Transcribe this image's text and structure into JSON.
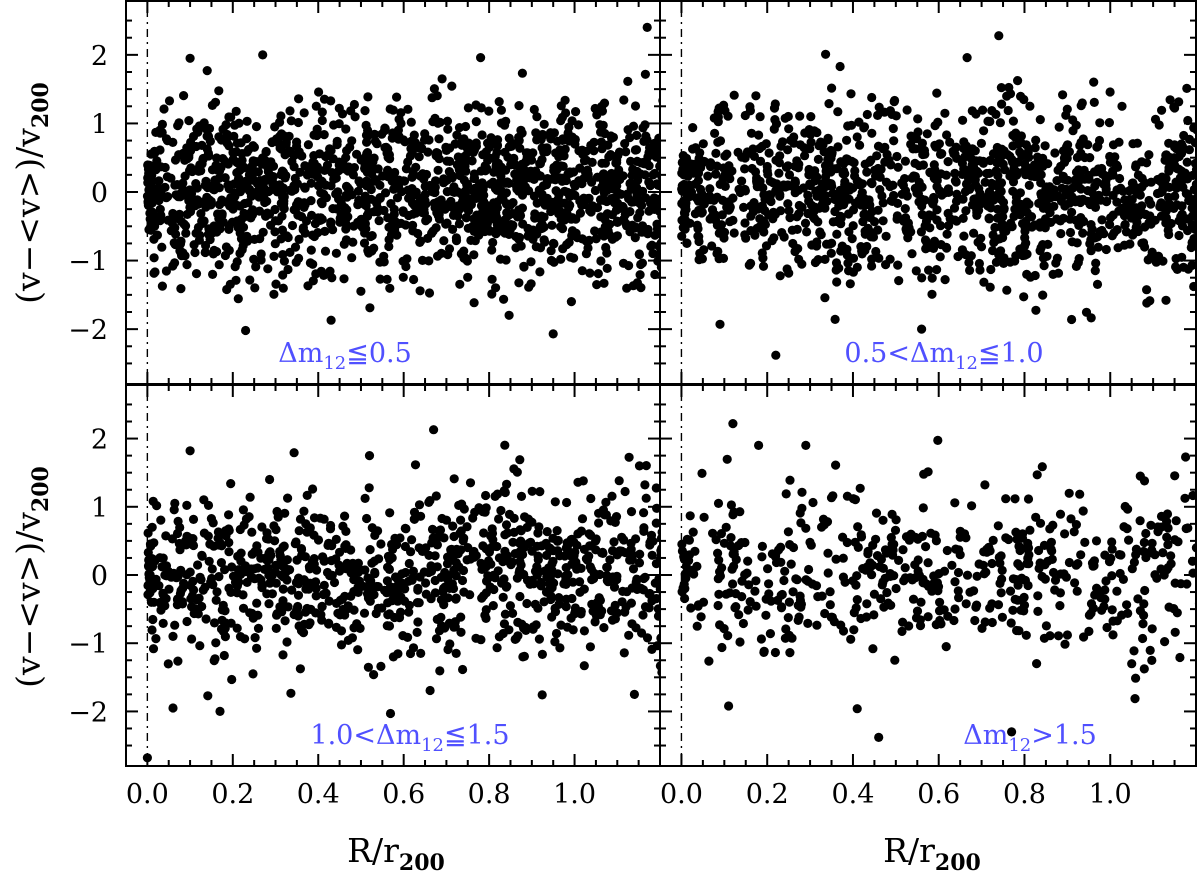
{
  "chart_data": [
    {
      "type": "scatter",
      "panel_label": {
        "pre": "Δm",
        "sub": "12",
        "post": "≦0.5"
      },
      "xlim": [
        -0.05,
        1.2
      ],
      "ylim": [
        -2.8,
        2.8
      ],
      "xticks": [
        "0.0",
        "0.2",
        "0.4",
        "0.6",
        "0.8",
        "1.0"
      ],
      "xtick_values": [
        0,
        0.2,
        0.4,
        0.6,
        0.8,
        1.0
      ],
      "yticks": [
        "−2",
        "−1",
        "0",
        "1",
        "2"
      ],
      "ytick_values": [
        -2,
        -1,
        0,
        1,
        2
      ],
      "reference_line_x": 0,
      "sample": {
        "n": 1600,
        "sigma": 0.62,
        "inner_spread": 0.3
      },
      "highlights": [
        [
          1.17,
          2.4
        ],
        [
          0.1,
          1.95
        ],
        [
          0.27,
          2.0
        ],
        [
          0.78,
          1.96
        ],
        [
          0.69,
          1.65
        ],
        [
          0.23,
          -2.02
        ],
        [
          0.95,
          -2.07
        ],
        [
          0.14,
          1.77
        ],
        [
          0.43,
          -1.87
        ]
      ]
    },
    {
      "type": "scatter",
      "panel_label": {
        "pre": "0.5<Δm",
        "sub": "12",
        "post": "≦1.0"
      },
      "xlim": [
        -0.05,
        1.2
      ],
      "ylim": [
        -2.8,
        2.8
      ],
      "xticks": [
        "0.0",
        "0.2",
        "0.4",
        "0.6",
        "0.8",
        "1.0"
      ],
      "xtick_values": [
        0,
        0.2,
        0.4,
        0.6,
        0.8,
        1.0
      ],
      "yticks": [
        "−2",
        "−1",
        "0",
        "1",
        "2"
      ],
      "ytick_values": [
        -2,
        -1,
        0,
        1,
        2
      ],
      "reference_line_x": 0,
      "sample": {
        "n": 1300,
        "sigma": 0.62,
        "inner_spread": 0.3
      },
      "highlights": [
        [
          0.74,
          2.28
        ],
        [
          0.22,
          -2.38
        ],
        [
          0.56,
          -2.0
        ],
        [
          0.91,
          -1.86
        ],
        [
          0.37,
          1.83
        ],
        [
          0.09,
          -1.93
        ],
        [
          1.13,
          -1.58
        ]
      ]
    },
    {
      "type": "scatter",
      "panel_label": {
        "pre": "1.0<Δm",
        "sub": "12",
        "post": "≦1.5"
      },
      "xlim": [
        -0.05,
        1.2
      ],
      "ylim": [
        -2.8,
        2.8
      ],
      "xticks": [
        "0.0",
        "0.2",
        "0.4",
        "0.6",
        "0.8",
        "1.0"
      ],
      "xtick_values": [
        0,
        0.2,
        0.4,
        0.6,
        0.8,
        1.0
      ],
      "yticks": [
        "−2",
        "−1",
        "0",
        "1",
        "2"
      ],
      "ytick_values": [
        -2,
        -1,
        0,
        1,
        2
      ],
      "reference_line_x": 0,
      "sample": {
        "n": 1000,
        "sigma": 0.6,
        "inner_spread": 0.3
      },
      "highlights": [
        [
          0.67,
          2.13
        ],
        [
          0.0,
          -2.68
        ],
        [
          0.17,
          -2.0
        ],
        [
          0.06,
          -1.95
        ],
        [
          1.14,
          -1.75
        ],
        [
          0.1,
          1.82
        ],
        [
          0.52,
          1.75
        ]
      ]
    },
    {
      "type": "scatter",
      "panel_label": {
        "pre": "Δm",
        "sub": "12",
        "post": ">1.5"
      },
      "xlim": [
        -0.05,
        1.2
      ],
      "ylim": [
        -2.8,
        2.8
      ],
      "xticks": [
        "0.0",
        "0.2",
        "0.4",
        "0.6",
        "0.8",
        "1.0"
      ],
      "xtick_values": [
        0,
        0.2,
        0.4,
        0.6,
        0.8,
        1.0
      ],
      "yticks": [
        "−2",
        "−1",
        "0",
        "1",
        "2"
      ],
      "ytick_values": [
        -2,
        -1,
        0,
        1,
        2
      ],
      "reference_line_x": 0,
      "sample": {
        "n": 560,
        "sigma": 0.6,
        "inner_spread": 0.3
      },
      "highlights": [
        [
          0.12,
          2.22
        ],
        [
          0.46,
          -2.38
        ],
        [
          0.41,
          -1.96
        ],
        [
          0.77,
          -2.3
        ],
        [
          0.11,
          -1.92
        ],
        [
          0.18,
          1.9
        ],
        [
          0.29,
          1.9
        ],
        [
          1.07,
          1.45
        ],
        [
          1.08,
          1.38
        ],
        [
          1.05,
          -1.3
        ]
      ]
    }
  ],
  "axes": {
    "xlabel": {
      "main": "R/r",
      "sub": "200"
    },
    "ylabel": {
      "main": "(v−<v>)/v",
      "sub": "200"
    }
  },
  "colors": {
    "points": "#000000",
    "panel_label": "#5050ff",
    "frame": "#000000"
  }
}
